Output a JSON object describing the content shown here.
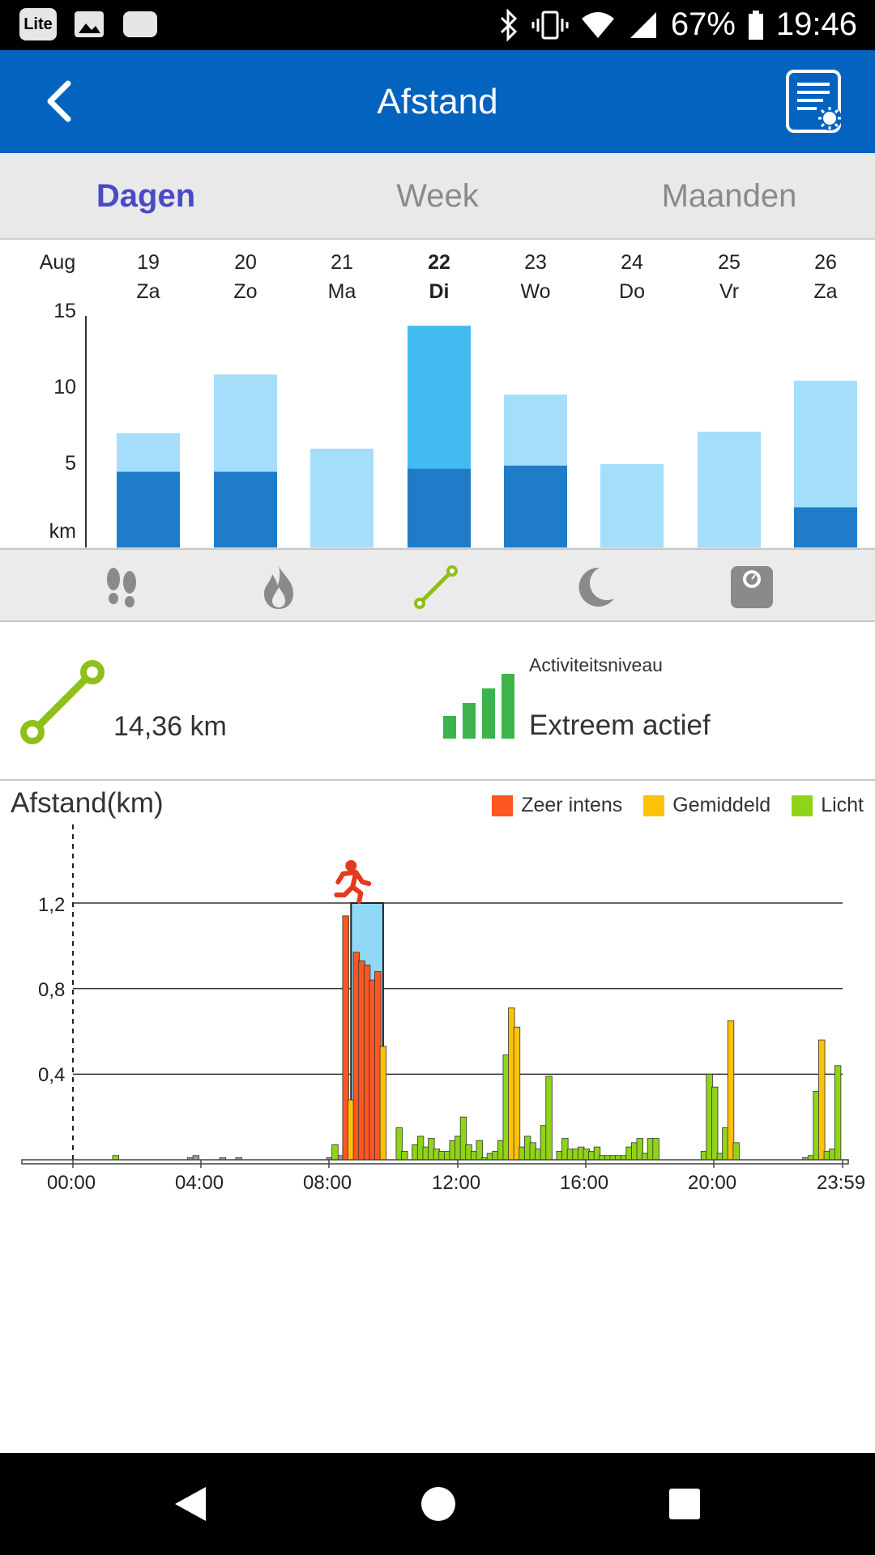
{
  "status_bar": {
    "battery": "67%",
    "time": "19:46",
    "left_icons": [
      "lite-app-icon",
      "image-icon",
      "chat-icon"
    ],
    "right_icons": [
      "bluetooth-icon",
      "vibrate-icon",
      "wifi-icon",
      "signal-icon",
      "battery-icon"
    ]
  },
  "header": {
    "title": "Afstand"
  },
  "tabs": [
    {
      "label": "Dagen",
      "active": true
    },
    {
      "label": "Week",
      "active": false
    },
    {
      "label": "Maanden",
      "active": false
    }
  ],
  "week_chart": {
    "month": "Aug",
    "unit": "km",
    "y_ticks": [
      "15",
      "10",
      "5"
    ],
    "days": [
      {
        "date": "19",
        "dow": "Za",
        "dark": 4.9,
        "total": 7.4,
        "selected": false
      },
      {
        "date": "20",
        "dow": "Zo",
        "dark": 4.9,
        "total": 11.2,
        "selected": false
      },
      {
        "date": "21",
        "dow": "Ma",
        "dark": 0,
        "total": 6.4,
        "selected": false
      },
      {
        "date": "22",
        "dow": "Di",
        "dark": 5.1,
        "total": 14.36,
        "selected": true
      },
      {
        "date": "23",
        "dow": "Wo",
        "dark": 5.3,
        "total": 9.9,
        "selected": false
      },
      {
        "date": "24",
        "dow": "Do",
        "dark": 0,
        "total": 5.4,
        "selected": false
      },
      {
        "date": "25",
        "dow": "Vr",
        "dark": 0,
        "total": 7.5,
        "selected": false
      },
      {
        "date": "26",
        "dow": "Za",
        "dark": 2.6,
        "total": 10.8,
        "selected": false
      }
    ],
    "ymax": 15,
    "colors": {
      "dark": "#1f7cc9",
      "light": "#a4defa",
      "selected_light": "#42bbf2"
    }
  },
  "metric_icons": [
    "footsteps-icon",
    "flame-icon",
    "distance-icon",
    "moon-icon",
    "scale-icon"
  ],
  "summary": {
    "distance": "14,36 km",
    "activity_label": "Activiteitsniveau",
    "activity_value": "Extreem actief"
  },
  "chart_data": {
    "type": "bar",
    "title": "Afstand(km)",
    "ylim": [
      0,
      1.2
    ],
    "y_ticks": [
      "1,2",
      "0,8",
      "0,4"
    ],
    "x_ticks": [
      "00:00",
      "04:00",
      "08:00",
      "12:00",
      "16:00",
      "20:00",
      "23:59"
    ],
    "legend": [
      {
        "name": "Zeer intens",
        "color": "#ff5722"
      },
      {
        "name": "Gemiddeld",
        "color": "#ffc107"
      },
      {
        "name": "Licht",
        "color": "#8fd417"
      }
    ],
    "running_window": {
      "start": "08:40",
      "end": "09:40"
    },
    "bars": [
      {
        "t": "01:20",
        "v": 0.02,
        "lvl": "light"
      },
      {
        "t": "03:40",
        "v": 0.01,
        "lvl": "none"
      },
      {
        "t": "03:50",
        "v": 0.02,
        "lvl": "none"
      },
      {
        "t": "04:40",
        "v": 0.01,
        "lvl": "none"
      },
      {
        "t": "05:10",
        "v": 0.01,
        "lvl": "none"
      },
      {
        "t": "08:00",
        "v": 0.01,
        "lvl": "none"
      },
      {
        "t": "08:20",
        "v": 0.02,
        "lvl": "none"
      },
      {
        "t": "08:30",
        "v": 0.03,
        "lvl": "none"
      },
      {
        "t": "08:10",
        "v": 0.01,
        "lvl": "light"
      },
      {
        "t": "08:10",
        "v": 0.07,
        "lvl": "light"
      },
      {
        "t": "08:30",
        "v": 1.14,
        "lvl": "intense"
      },
      {
        "t": "08:40",
        "v": 0.28,
        "lvl": "moderate"
      },
      {
        "t": "08:50",
        "v": 0.97,
        "lvl": "intense"
      },
      {
        "t": "09:00",
        "v": 0.93,
        "lvl": "intense"
      },
      {
        "t": "09:10",
        "v": 0.91,
        "lvl": "intense"
      },
      {
        "t": "09:20",
        "v": 0.84,
        "lvl": "intense"
      },
      {
        "t": "09:30",
        "v": 0.88,
        "lvl": "intense"
      },
      {
        "t": "09:40",
        "v": 0.53,
        "lvl": "moderate"
      },
      {
        "t": "10:10",
        "v": 0.15,
        "lvl": "light"
      },
      {
        "t": "10:20",
        "v": 0.04,
        "lvl": "light"
      },
      {
        "t": "10:40",
        "v": 0.07,
        "lvl": "light"
      },
      {
        "t": "10:50",
        "v": 0.11,
        "lvl": "light"
      },
      {
        "t": "11:00",
        "v": 0.06,
        "lvl": "light"
      },
      {
        "t": "11:10",
        "v": 0.1,
        "lvl": "light"
      },
      {
        "t": "11:20",
        "v": 0.05,
        "lvl": "light"
      },
      {
        "t": "11:30",
        "v": 0.04,
        "lvl": "light"
      },
      {
        "t": "11:40",
        "v": 0.04,
        "lvl": "light"
      },
      {
        "t": "11:50",
        "v": 0.09,
        "lvl": "light"
      },
      {
        "t": "12:00",
        "v": 0.11,
        "lvl": "light"
      },
      {
        "t": "12:10",
        "v": 0.2,
        "lvl": "light"
      },
      {
        "t": "12:20",
        "v": 0.07,
        "lvl": "light"
      },
      {
        "t": "12:30",
        "v": 0.04,
        "lvl": "light"
      },
      {
        "t": "12:40",
        "v": 0.09,
        "lvl": "light"
      },
      {
        "t": "12:50",
        "v": 0.01,
        "lvl": "light"
      },
      {
        "t": "13:00",
        "v": 0.03,
        "lvl": "light"
      },
      {
        "t": "13:10",
        "v": 0.04,
        "lvl": "light"
      },
      {
        "t": "13:20",
        "v": 0.09,
        "lvl": "light"
      },
      {
        "t": "13:30",
        "v": 0.49,
        "lvl": "light"
      },
      {
        "t": "13:40",
        "v": 0.71,
        "lvl": "moderate"
      },
      {
        "t": "13:50",
        "v": 0.62,
        "lvl": "moderate"
      },
      {
        "t": "14:00",
        "v": 0.06,
        "lvl": "light"
      },
      {
        "t": "14:10",
        "v": 0.11,
        "lvl": "light"
      },
      {
        "t": "14:20",
        "v": 0.08,
        "lvl": "light"
      },
      {
        "t": "14:30",
        "v": 0.05,
        "lvl": "light"
      },
      {
        "t": "14:40",
        "v": 0.16,
        "lvl": "light"
      },
      {
        "t": "14:50",
        "v": 0.39,
        "lvl": "light"
      },
      {
        "t": "15:10",
        "v": 0.04,
        "lvl": "light"
      },
      {
        "t": "15:20",
        "v": 0.1,
        "lvl": "light"
      },
      {
        "t": "15:30",
        "v": 0.05,
        "lvl": "light"
      },
      {
        "t": "15:40",
        "v": 0.05,
        "lvl": "light"
      },
      {
        "t": "15:50",
        "v": 0.06,
        "lvl": "light"
      },
      {
        "t": "16:00",
        "v": 0.05,
        "lvl": "light"
      },
      {
        "t": "16:10",
        "v": 0.04,
        "lvl": "light"
      },
      {
        "t": "16:20",
        "v": 0.06,
        "lvl": "light"
      },
      {
        "t": "16:30",
        "v": 0.02,
        "lvl": "light"
      },
      {
        "t": "16:40",
        "v": 0.02,
        "lvl": "light"
      },
      {
        "t": "16:50",
        "v": 0.02,
        "lvl": "light"
      },
      {
        "t": "17:00",
        "v": 0.02,
        "lvl": "light"
      },
      {
        "t": "17:10",
        "v": 0.02,
        "lvl": "light"
      },
      {
        "t": "17:20",
        "v": 0.06,
        "lvl": "light"
      },
      {
        "t": "17:30",
        "v": 0.08,
        "lvl": "light"
      },
      {
        "t": "17:40",
        "v": 0.1,
        "lvl": "light"
      },
      {
        "t": "17:50",
        "v": 0.03,
        "lvl": "light"
      },
      {
        "t": "18:00",
        "v": 0.1,
        "lvl": "light"
      },
      {
        "t": "18:10",
        "v": 0.1,
        "lvl": "light"
      },
      {
        "t": "19:40",
        "v": 0.04,
        "lvl": "light"
      },
      {
        "t": "19:50",
        "v": 0.4,
        "lvl": "light"
      },
      {
        "t": "20:00",
        "v": 0.34,
        "lvl": "light"
      },
      {
        "t": "20:10",
        "v": 0.03,
        "lvl": "light"
      },
      {
        "t": "20:20",
        "v": 0.15,
        "lvl": "light"
      },
      {
        "t": "20:30",
        "v": 0.65,
        "lvl": "moderate"
      },
      {
        "t": "20:40",
        "v": 0.08,
        "lvl": "light"
      },
      {
        "t": "22:50",
        "v": 0.01,
        "lvl": "none"
      },
      {
        "t": "23:00",
        "v": 0.02,
        "lvl": "light"
      },
      {
        "t": "23:10",
        "v": 0.32,
        "lvl": "light"
      },
      {
        "t": "23:20",
        "v": 0.56,
        "lvl": "moderate"
      },
      {
        "t": "23:30",
        "v": 0.04,
        "lvl": "light"
      },
      {
        "t": "23:40",
        "v": 0.05,
        "lvl": "light"
      },
      {
        "t": "23:50",
        "v": 0.44,
        "lvl": "light"
      }
    ]
  }
}
